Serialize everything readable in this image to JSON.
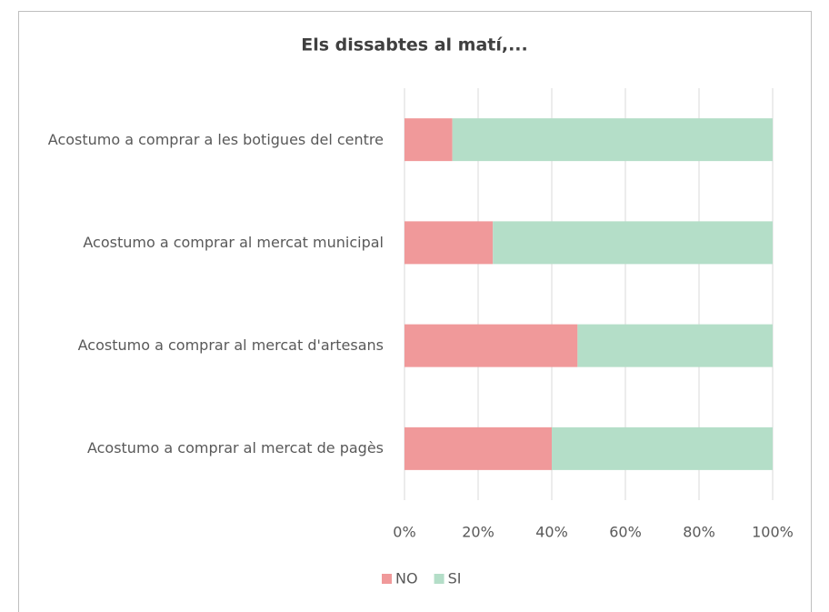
{
  "chart_data": {
    "type": "bar",
    "orientation": "horizontal",
    "stacked": "percent",
    "title": "Els dissabtes al matí,...",
    "categories": [
      "Acostumo a comprar a les botigues del centre",
      "Acostumo a comprar al mercat municipal",
      "Acostumo a comprar al mercat d'artesans",
      "Acostumo a comprar al mercat de pagès"
    ],
    "series": [
      {
        "name": "NO",
        "color": "#f0999a",
        "values": [
          13,
          24,
          47,
          40
        ]
      },
      {
        "name": "SI",
        "color": "#b4dec8",
        "values": [
          87,
          76,
          53,
          60
        ]
      }
    ],
    "xlim": [
      0,
      100
    ],
    "xticks": [
      {
        "value": 0,
        "label": "0%"
      },
      {
        "value": 20,
        "label": "20%"
      },
      {
        "value": 40,
        "label": "40%"
      },
      {
        "value": 60,
        "label": "60%"
      },
      {
        "value": 80,
        "label": "80%"
      },
      {
        "value": 100,
        "label": "100%"
      }
    ],
    "grid": true,
    "legend": "bottom"
  }
}
